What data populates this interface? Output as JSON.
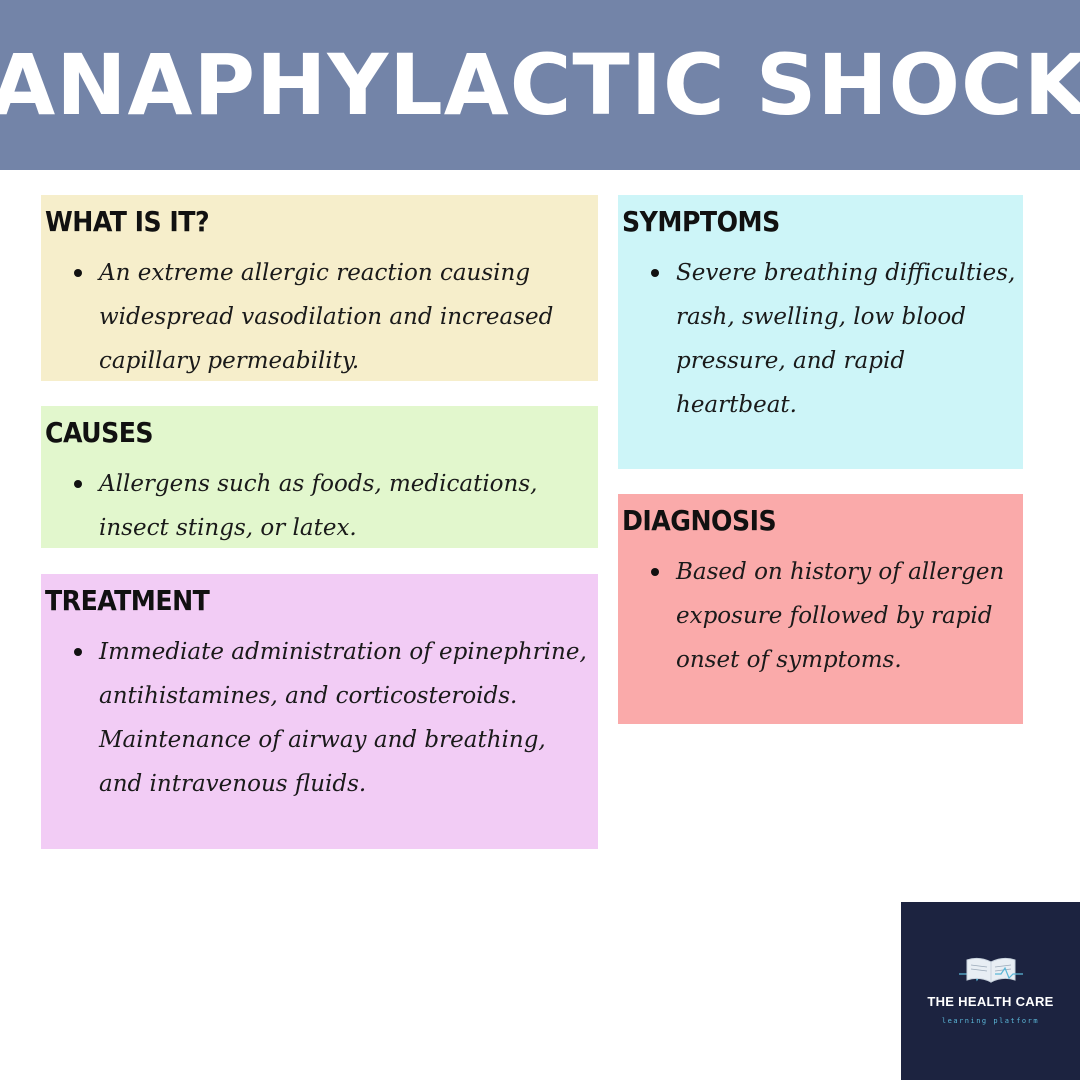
{
  "header": {
    "title": "ANAPHYLACTIC SHOCK"
  },
  "colors": {
    "header": "#7384a8",
    "what": "#f6eecb",
    "causes": "#e2f7cd",
    "treatment": "#f2ccf5",
    "symptoms": "#cdf5f8",
    "diagnosis": "#faaaaa",
    "logo_bg": "#1c2340"
  },
  "sections": {
    "what": {
      "heading": "WHAT IS IT?",
      "items": [
        "An extreme allergic reaction causing widespread vasodilation and increased capillary permeability."
      ]
    },
    "causes": {
      "heading": "CAUSES",
      "items": [
        "Allergens such as foods, medications, insect stings, or latex."
      ]
    },
    "treatment": {
      "heading": "TREATMENT",
      "items": [
        "Immediate administration of epinephrine, antihistamines, and corticosteroids. Maintenance of airway and breathing, and intravenous fluids."
      ]
    },
    "symptoms": {
      "heading": "SYMPTOMS",
      "items": [
        "Severe breathing difficulties, rash, swelling, low blood pressure, and rapid heartbeat."
      ]
    },
    "diagnosis": {
      "heading": "DIAGNOSIS",
      "items": [
        "Based on history of allergen exposure followed by rapid onset of symptoms."
      ]
    }
  },
  "logo": {
    "icon": "open-book-heartbeat-icon",
    "name": "THE HEALTH CARE",
    "tagline": "learning platform"
  }
}
